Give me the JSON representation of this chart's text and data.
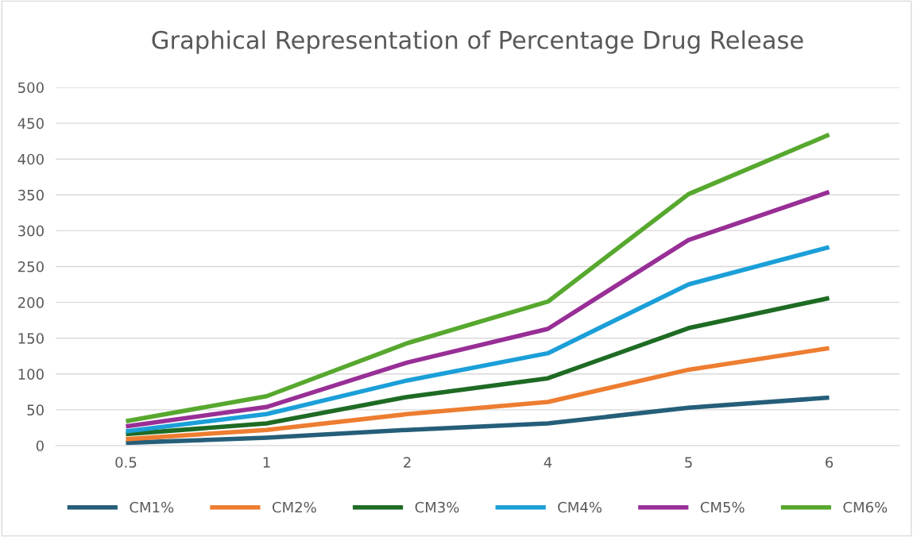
{
  "chart_data": {
    "type": "line",
    "title": "Graphical Representation of Percentage Drug Release",
    "categories": [
      "0.5",
      "1",
      "2",
      "4",
      "5",
      "6"
    ],
    "series": [
      {
        "name": "CM1%",
        "color": "#255e79",
        "values": [
          4,
          11,
          22,
          31,
          53,
          67
        ]
      },
      {
        "name": "CM2%",
        "color": "#ed7d31",
        "values": [
          9,
          22,
          44,
          61,
          106,
          136
        ]
      },
      {
        "name": "CM3%",
        "color": "#1e6b24",
        "values": [
          16,
          31,
          68,
          94,
          164,
          206
        ]
      },
      {
        "name": "CM4%",
        "color": "#1b9fd8",
        "values": [
          20,
          44,
          91,
          129,
          225,
          277
        ]
      },
      {
        "name": "CM5%",
        "color": "#982f96",
        "values": [
          27,
          54,
          116,
          163,
          287,
          354
        ]
      },
      {
        "name": "CM6%",
        "color": "#57a82e",
        "values": [
          34,
          69,
          143,
          201,
          351,
          434
        ]
      }
    ],
    "ylim": [
      0,
      500
    ],
    "yticks": [
      0,
      50,
      100,
      150,
      200,
      250,
      300,
      350,
      400,
      450,
      500
    ],
    "grid": "y",
    "legend": "bottom",
    "marker": "none",
    "line_style": "solid"
  }
}
